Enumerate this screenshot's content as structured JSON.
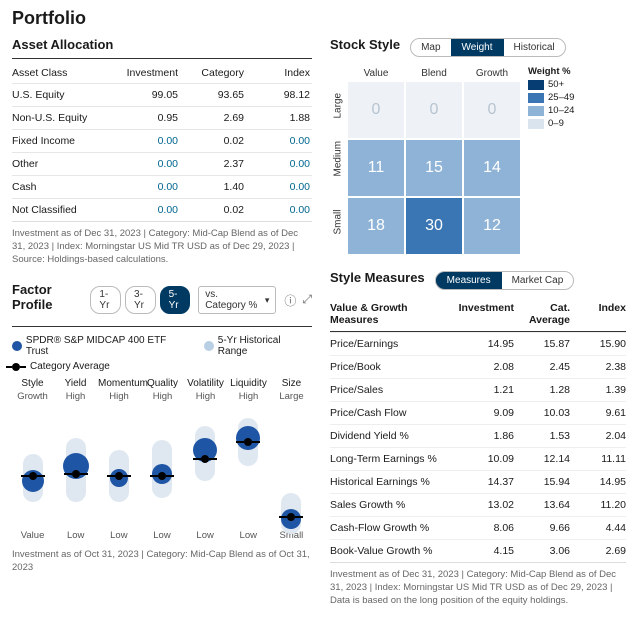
{
  "title": "Portfolio",
  "assetAllocation": {
    "heading": "Asset Allocation",
    "columns": [
      "Asset Class",
      "Investment",
      "Category",
      "Index"
    ],
    "rows": [
      {
        "label": "U.S. Equity",
        "inv": "99.05",
        "cat": "93.65",
        "idx": "98.12"
      },
      {
        "label": "Non-U.S. Equity",
        "inv": "0.95",
        "cat": "2.69",
        "idx": "1.88"
      },
      {
        "label": "Fixed Income",
        "inv": "0.00",
        "cat": "0.02",
        "idx": "0.00"
      },
      {
        "label": "Other",
        "inv": "0.00",
        "cat": "2.37",
        "idx": "0.00"
      },
      {
        "label": "Cash",
        "inv": "0.00",
        "cat": "1.40",
        "idx": "0.00"
      },
      {
        "label": "Not Classified",
        "inv": "0.00",
        "cat": "0.02",
        "idx": "0.00"
      }
    ],
    "footnote": "Investment as of Dec 31, 2023 | Category: Mid-Cap Blend as of Dec 31, 2023 | Index: Morningstar US Mid TR USD as of Dec 29, 2023 | Source: Holdings-based calculations."
  },
  "stockStyle": {
    "heading": "Stock Style",
    "tabs": [
      "Map",
      "Weight",
      "Historical"
    ],
    "activeTab": 1,
    "colLabels": [
      "Value",
      "Blend",
      "Growth"
    ],
    "rowLabels": [
      "Large",
      "Medium",
      "Small"
    ],
    "cells": [
      [
        {
          "v": "0",
          "bg": "#eef2f6",
          "fg": "#b7c3cf"
        },
        {
          "v": "0",
          "bg": "#eef2f6",
          "fg": "#b7c3cf"
        },
        {
          "v": "0",
          "bg": "#eef2f6",
          "fg": "#b7c3cf"
        }
      ],
      [
        {
          "v": "11",
          "bg": "#8eb3d6",
          "fg": "#ffffff"
        },
        {
          "v": "15",
          "bg": "#8eb3d6",
          "fg": "#ffffff"
        },
        {
          "v": "14",
          "bg": "#8eb3d6",
          "fg": "#ffffff"
        }
      ],
      [
        {
          "v": "18",
          "bg": "#8eb3d6",
          "fg": "#ffffff"
        },
        {
          "v": "30",
          "bg": "#3a76b3",
          "fg": "#ffffff"
        },
        {
          "v": "12",
          "bg": "#8eb3d6",
          "fg": "#ffffff"
        }
      ]
    ],
    "legend": {
      "title": "Weight %",
      "items": [
        {
          "label": "50+",
          "color": "#063d73"
        },
        {
          "label": "25–49",
          "color": "#3a76b3"
        },
        {
          "label": "10–24",
          "color": "#8eb3d6"
        },
        {
          "label": "0–9",
          "color": "#d9e4ef"
        }
      ]
    }
  },
  "factorProfile": {
    "heading": "Factor Profile",
    "periods": [
      "1-Yr",
      "3-Yr",
      "5-Yr"
    ],
    "activePeriod": 2,
    "vs": "vs. Category %",
    "legend": {
      "fund": "SPDR® S&P MIDCAP 400 ETF Trust",
      "range": "5-Yr Historical Range",
      "cat": "Category Average"
    },
    "factors": [
      {
        "name": "Style",
        "top": "Growth",
        "bot": "Value",
        "rangeTop": 40,
        "rangeH": 40,
        "blue": 62,
        "blueSize": 22,
        "cat": 58
      },
      {
        "name": "Yield",
        "top": "High",
        "bot": "Low",
        "rangeTop": 26,
        "rangeH": 54,
        "blue": 50,
        "blueSize": 26,
        "cat": 56
      },
      {
        "name": "Momentum",
        "top": "High",
        "bot": "Low",
        "rangeTop": 36,
        "rangeH": 44,
        "blue": 60,
        "blueSize": 18,
        "cat": 58
      },
      {
        "name": "Quality",
        "top": "High",
        "bot": "Low",
        "rangeTop": 28,
        "rangeH": 48,
        "blue": 56,
        "blueSize": 20,
        "cat": 58
      },
      {
        "name": "Volatility",
        "top": "High",
        "bot": "Low",
        "rangeTop": 16,
        "rangeH": 46,
        "blue": 36,
        "blueSize": 24,
        "cat": 44
      },
      {
        "name": "Liquidity",
        "top": "High",
        "bot": "Low",
        "rangeTop": 10,
        "rangeH": 40,
        "blue": 26,
        "blueSize": 24,
        "cat": 30
      },
      {
        "name": "Size",
        "top": "Large",
        "bot": "Small",
        "rangeTop": 72,
        "rangeH": 34,
        "blue": 94,
        "blueSize": 20,
        "cat": 92
      }
    ],
    "footnote": "Investment as of Oct 31, 2023 | Category: Mid-Cap Blend as of Oct 31, 2023"
  },
  "styleMeasures": {
    "heading": "Style Measures",
    "tabs": [
      "Measures",
      "Market Cap"
    ],
    "activeTab": 0,
    "columns": [
      "Value & Growth Measures",
      "Investment",
      "Cat. Average",
      "Index"
    ],
    "rows": [
      {
        "label": "Price/Earnings",
        "inv": "14.95",
        "cat": "15.87",
        "idx": "15.90"
      },
      {
        "label": "Price/Book",
        "inv": "2.08",
        "cat": "2.45",
        "idx": "2.38"
      },
      {
        "label": "Price/Sales",
        "inv": "1.21",
        "cat": "1.28",
        "idx": "1.39"
      },
      {
        "label": "Price/Cash Flow",
        "inv": "9.09",
        "cat": "10.03",
        "idx": "9.61"
      },
      {
        "label": "Dividend Yield %",
        "inv": "1.86",
        "cat": "1.53",
        "idx": "2.04"
      },
      {
        "label": "Long-Term Earnings %",
        "inv": "10.09",
        "cat": "12.14",
        "idx": "11.11"
      },
      {
        "label": "Historical Earnings %",
        "inv": "14.37",
        "cat": "15.94",
        "idx": "14.95"
      },
      {
        "label": "Sales Growth %",
        "inv": "13.02",
        "cat": "13.64",
        "idx": "11.20"
      },
      {
        "label": "Cash-Flow Growth %",
        "inv": "8.06",
        "cat": "9.66",
        "idx": "4.44"
      },
      {
        "label": "Book-Value Growth %",
        "inv": "4.15",
        "cat": "3.06",
        "idx": "2.69"
      }
    ],
    "footnote": "Investment as of Dec 31, 2023 | Category: Mid-Cap Blend as of Dec 31, 2023 | Index: Morningstar US Mid TR USD as of Dec 29, 2023 | Data is based on the long position of the equity holdings."
  }
}
